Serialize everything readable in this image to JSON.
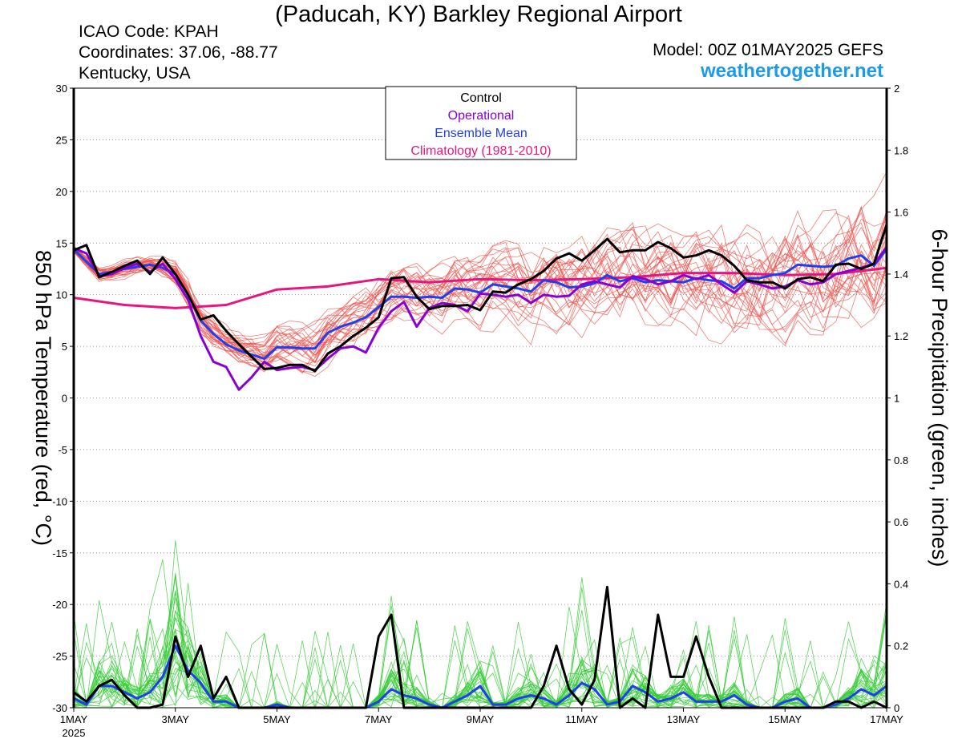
{
  "header": {
    "title": "(Paducah, KY) Barkley Regional Airport",
    "icao": "ICAO Code: KPAH",
    "coordinates": "Coordinates: 37.06, -88.77",
    "region": "Kentucky, USA",
    "model": "Model: 00Z 01MAY2025 GEFS",
    "website": "weathertogether.net"
  },
  "colors": {
    "control": "#000000",
    "operational": "#8a00d4",
    "ensemble_mean": "#1f3ff0",
    "climatology": "#e8157e",
    "members_temp": "#f0504a",
    "members_precip": "#33cc33",
    "website": "#1e9be8"
  },
  "chart_data": {
    "type": "line",
    "xlabel": "",
    "x_ticks": [
      "1MAY",
      "3MAY",
      "5MAY",
      "7MAY",
      "9MAY",
      "11MAY",
      "13MAY",
      "15MAY",
      "17MAY"
    ],
    "x_year_label": "2025",
    "x_range_days": [
      1,
      17
    ],
    "ylabel_left": "850 hPa Temperature (red, °C)",
    "ylabel_right": "6-hour Precipitation (green, inches)",
    "ylim_left": [
      -30,
      30
    ],
    "yticks_left": [
      "30",
      "25",
      "20",
      "15",
      "10",
      "5",
      "0",
      "-5",
      "-10",
      "-15",
      "-20",
      "-25",
      "-30"
    ],
    "ylim_right": [
      0,
      2
    ],
    "yticks_right": [
      "2",
      "1.8",
      "1.6",
      "1.4",
      "1.2",
      "1",
      "0.8",
      "0.6",
      "0.4",
      "0.2",
      "0"
    ],
    "legend": {
      "placement": "top-center",
      "entries": [
        {
          "label": "Control",
          "color": "#000000"
        },
        {
          "label": "Operational",
          "color": "#8a00d4"
        },
        {
          "label": "Ensemble Mean",
          "color": "#1f3ff0"
        },
        {
          "label": "Climatology (1981-2010)",
          "color": "#e8157e"
        }
      ]
    },
    "temperature": {
      "control": {
        "x": [
          1.0,
          1.25,
          1.5,
          1.75,
          2.0,
          2.25,
          2.5,
          2.75,
          3.0,
          3.25,
          3.5,
          3.75,
          4.0,
          4.25,
          4.5,
          4.75,
          5.0,
          5.25,
          5.5,
          5.75,
          6.0,
          6.25,
          6.5,
          6.75,
          7.0,
          7.25,
          7.5,
          7.75,
          8.0,
          8.25,
          8.5,
          8.75,
          9.0,
          9.25,
          9.5,
          9.75,
          10.0,
          10.25,
          10.5,
          10.75,
          11.0,
          11.25,
          11.5,
          11.75,
          12.0,
          12.25,
          12.5,
          12.75,
          13.0,
          13.25,
          13.5,
          13.75,
          14.0,
          14.25,
          14.5,
          14.75,
          15.0,
          15.25,
          15.5,
          15.75,
          16.0,
          16.25,
          16.5,
          16.75,
          17.0
        ],
        "y": [
          14.3,
          14.8,
          11.7,
          12.2,
          12.8,
          13.3,
          12.0,
          13.6,
          12.0,
          10.0,
          7.6,
          8.0,
          6.5,
          5.2,
          4.0,
          2.8,
          2.9,
          3.2,
          3.2,
          2.6,
          4.3,
          5.0,
          6.0,
          6.8,
          7.8,
          11.6,
          11.7,
          9.8,
          8.6,
          8.9,
          8.9,
          9.0,
          8.5,
          10.3,
          10.2,
          11.0,
          11.5,
          12.3,
          13.5,
          14.0,
          13.3,
          14.3,
          15.4,
          14.1,
          14.3,
          14.3,
          15.1,
          14.5,
          13.6,
          13.8,
          14.3,
          13.8,
          12.8,
          11.4,
          11.2,
          11.2,
          10.6,
          11.5,
          11.7,
          11.3,
          12.9,
          13.0,
          12.5,
          13.0,
          16.8
        ]
      },
      "operational": {
        "x": [
          1.0,
          1.25,
          1.5,
          1.75,
          2.0,
          2.25,
          2.5,
          2.75,
          3.0,
          3.25,
          3.5,
          3.75,
          4.0,
          4.25,
          4.5,
          4.75,
          5.0,
          5.25,
          5.5,
          5.75,
          6.0,
          6.25,
          6.5,
          6.75,
          7.0,
          7.25,
          7.5,
          7.75,
          8.0,
          8.25,
          8.5,
          8.75,
          9.0,
          9.25,
          9.5,
          9.75,
          10.0,
          10.25,
          10.5,
          10.75,
          11.0,
          11.25,
          11.5,
          11.75,
          12.0,
          12.25,
          12.5,
          12.75,
          13.0,
          13.25,
          13.5,
          13.75,
          14.0,
          14.25,
          14.5,
          14.75,
          15.0,
          15.25,
          15.5,
          15.75,
          16.0,
          16.25,
          16.5,
          16.75,
          17.0
        ],
        "y": [
          14.5,
          14.0,
          11.8,
          12.0,
          12.6,
          13.0,
          12.2,
          13.0,
          11.5,
          9.5,
          6.0,
          3.5,
          3.0,
          0.8,
          2.0,
          3.5,
          2.7,
          2.9,
          3.0,
          2.7,
          3.8,
          4.8,
          5.0,
          4.4,
          6.8,
          8.4,
          9.3,
          6.9,
          8.7,
          9.2,
          9.0,
          8.4,
          10.1,
          10.0,
          9.8,
          10.0,
          9.2,
          10.0,
          9.8,
          9.9,
          11.0,
          11.3,
          11.0,
          10.7,
          11.8,
          11.5,
          11.0,
          11.3,
          11.9,
          11.5,
          11.9,
          11.0,
          10.2,
          11.3,
          11.0,
          10.6,
          10.8,
          11.4,
          11.0,
          11.2,
          12.0,
          12.3,
          12.6,
          13.0,
          14.6
        ]
      },
      "ensemble_mean": {
        "x": [
          1.0,
          1.25,
          1.5,
          1.75,
          2.0,
          2.25,
          2.5,
          2.75,
          3.0,
          3.25,
          3.5,
          3.75,
          4.0,
          4.25,
          4.5,
          4.75,
          5.0,
          5.25,
          5.5,
          5.75,
          6.0,
          6.25,
          6.5,
          6.75,
          7.0,
          7.25,
          7.5,
          7.75,
          8.0,
          8.25,
          8.5,
          8.75,
          9.0,
          9.25,
          9.5,
          9.75,
          10.0,
          10.25,
          10.5,
          10.75,
          11.0,
          11.25,
          11.5,
          11.75,
          12.0,
          12.25,
          12.5,
          12.75,
          13.0,
          13.25,
          13.5,
          13.75,
          14.0,
          14.25,
          14.5,
          14.75,
          15.0,
          15.25,
          15.5,
          15.75,
          16.0,
          16.25,
          16.5,
          16.75,
          17.0
        ],
        "y": [
          14.4,
          13.2,
          12.0,
          12.2,
          12.5,
          12.7,
          12.9,
          12.6,
          12.0,
          10.0,
          7.5,
          6.2,
          5.2,
          4.6,
          4.2,
          3.8,
          4.9,
          4.9,
          4.8,
          4.8,
          6.3,
          6.9,
          7.3,
          7.8,
          8.8,
          9.8,
          9.8,
          9.7,
          9.8,
          9.7,
          10.6,
          10.5,
          10.2,
          11.0,
          10.8,
          10.6,
          10.3,
          11.4,
          11.2,
          10.7,
          10.8,
          11.1,
          11.9,
          11.3,
          11.6,
          11.2,
          11.4,
          11.3,
          11.2,
          11.6,
          11.4,
          11.3,
          10.6,
          11.6,
          11.6,
          11.9,
          12.1,
          12.9,
          12.8,
          12.7,
          12.8,
          13.5,
          13.8,
          12.8,
          14.4
        ]
      },
      "climatology": {
        "x": [
          1.0,
          2.0,
          3.0,
          4.0,
          5.0,
          6.0,
          7.0,
          8.0,
          9.0,
          10.0,
          11.0,
          12.0,
          13.0,
          14.0,
          15.0,
          16.0,
          17.0
        ],
        "y": [
          9.7,
          9.0,
          8.7,
          9.0,
          10.5,
          10.8,
          11.5,
          11.2,
          11.5,
          11.4,
          11.5,
          11.7,
          12.1,
          12.1,
          11.9,
          12.0,
          12.6
        ]
      }
    },
    "precipitation_inches": {
      "control": {
        "x": [
          1.0,
          1.25,
          1.5,
          1.75,
          2.0,
          2.25,
          2.5,
          2.75,
          3.0,
          3.25,
          3.5,
          3.75,
          4.0,
          4.25,
          4.5,
          4.75,
          5.0,
          5.25,
          5.5,
          5.75,
          6.0,
          6.25,
          6.5,
          6.75,
          7.0,
          7.25,
          7.5,
          7.75,
          8.0,
          8.25,
          8.5,
          8.75,
          9.0,
          9.25,
          9.5,
          9.75,
          10.0,
          10.25,
          10.5,
          10.75,
          11.0,
          11.25,
          11.5,
          11.75,
          12.0,
          12.25,
          12.5,
          12.75,
          13.0,
          13.25,
          13.5,
          13.75,
          14.0,
          14.25,
          14.5,
          14.75,
          15.0,
          15.25,
          15.5,
          15.75,
          16.0,
          16.25,
          16.5,
          16.75,
          17.0
        ],
        "y": [
          0.05,
          0.02,
          0.07,
          0.09,
          0.04,
          0.0,
          0.0,
          0.01,
          0.23,
          0.1,
          0.2,
          0.03,
          0.1,
          0.0,
          0.0,
          0.0,
          0.0,
          0.0,
          0.0,
          0.0,
          0.0,
          0.0,
          0.0,
          0.0,
          0.23,
          0.3,
          0.0,
          0.0,
          0.0,
          0.0,
          0.0,
          0.0,
          0.0,
          0.0,
          0.0,
          0.0,
          0.0,
          0.07,
          0.2,
          0.06,
          0.01,
          0.09,
          0.39,
          0.0,
          0.03,
          0.0,
          0.3,
          0.1,
          0.1,
          0.23,
          0.1,
          0.0,
          0.0,
          0.0,
          0.0,
          0.0,
          0.0,
          0.0,
          0.0,
          0.0,
          0.02,
          0.02,
          0.0,
          0.02,
          0.0
        ]
      },
      "ensemble_mean": {
        "x": [
          1.0,
          1.25,
          1.5,
          1.75,
          2.0,
          2.25,
          2.5,
          2.75,
          3.0,
          3.25,
          3.5,
          3.75,
          4.0,
          4.25,
          4.5,
          4.75,
          5.0,
          5.25,
          5.5,
          5.75,
          6.0,
          6.25,
          6.5,
          6.75,
          7.0,
          7.25,
          7.5,
          7.75,
          8.0,
          8.25,
          8.5,
          8.75,
          9.0,
          9.25,
          9.5,
          9.75,
          10.0,
          10.25,
          10.5,
          10.75,
          11.0,
          11.25,
          11.5,
          11.75,
          12.0,
          12.25,
          12.5,
          12.75,
          13.0,
          13.25,
          13.5,
          13.75,
          14.0,
          14.25,
          14.5,
          14.75,
          15.0,
          15.25,
          15.5,
          15.75,
          16.0,
          16.25,
          16.5,
          16.75,
          17.0
        ],
        "y": [
          0.03,
          0.01,
          0.07,
          0.07,
          0.05,
          0.03,
          0.05,
          0.1,
          0.2,
          0.12,
          0.08,
          0.02,
          0.02,
          0.0,
          0.0,
          0.0,
          0.01,
          0.0,
          0.0,
          0.0,
          0.0,
          0.0,
          0.0,
          0.0,
          0.02,
          0.06,
          0.04,
          0.03,
          0.01,
          0.0,
          0.02,
          0.04,
          0.07,
          0.01,
          0.01,
          0.03,
          0.04,
          0.03,
          0.01,
          0.04,
          0.08,
          0.06,
          0.01,
          0.02,
          0.07,
          0.05,
          0.02,
          0.03,
          0.05,
          0.02,
          0.02,
          0.02,
          0.04,
          0.01,
          0.0,
          0.0,
          0.02,
          0.03,
          0.0,
          0.0,
          0.01,
          0.03,
          0.06,
          0.04,
          0.07
        ]
      }
    }
  }
}
